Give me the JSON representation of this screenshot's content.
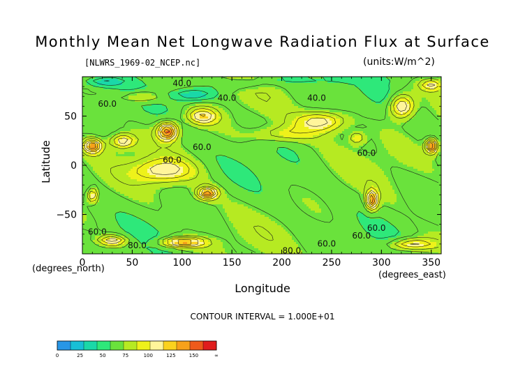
{
  "chart_data": {
    "type": "heatmap",
    "title": "Monthly Mean Net Longwave Radiation Flux at Surface",
    "subtitle": "[NLWRS_1969-02_NCEP.nc]",
    "units": "(units:W/m^2)",
    "xlabel": "Longitude",
    "ylabel": "Latitude",
    "x_unit_label": "(degrees_east)",
    "y_unit_label": "(degrees_north)",
    "xlim": [
      0,
      360
    ],
    "ylim": [
      -90,
      90
    ],
    "x_ticks": [
      0,
      50,
      100,
      150,
      200,
      250,
      300,
      350
    ],
    "y_ticks": [
      -50,
      0,
      50
    ],
    "contour_interval_text": "CONTOUR INTERVAL = 1.000E+01",
    "contour_labels": [
      {
        "text": "40.0",
        "lon": 100,
        "lat": 83
      },
      {
        "text": "40.0",
        "lon": 145,
        "lat": 68
      },
      {
        "text": "40.0",
        "lon": 235,
        "lat": 68
      },
      {
        "text": "60.0",
        "lon": 25,
        "lat": 62
      },
      {
        "text": "60.0",
        "lon": 120,
        "lat": 18
      },
      {
        "text": "60.0",
        "lon": 90,
        "lat": 5
      },
      {
        "text": "60.0",
        "lon": 285,
        "lat": 12
      },
      {
        "text": "60.0",
        "lon": 295,
        "lat": -64
      },
      {
        "text": "60.0",
        "lon": 280,
        "lat": -72
      },
      {
        "text": "60.0",
        "lon": 245,
        "lat": -80
      },
      {
        "text": "60.0",
        "lon": 15,
        "lat": -68
      },
      {
        "text": "80.0",
        "lon": 55,
        "lat": -82
      },
      {
        "text": "80.0",
        "lon": 210,
        "lat": -87
      }
    ],
    "colorbar": {
      "ticks": [
        "0",
        "25",
        "50",
        "75",
        "100",
        "125",
        "150",
        "∞"
      ],
      "colors": [
        "#2896e6",
        "#18bfd6",
        "#1ad8a8",
        "#2ee87a",
        "#6ae23c",
        "#b6ea22",
        "#eef21a",
        "#fff59a",
        "#fad21e",
        "#f7a11a",
        "#ee5a1b",
        "#e01d1d"
      ]
    }
  }
}
